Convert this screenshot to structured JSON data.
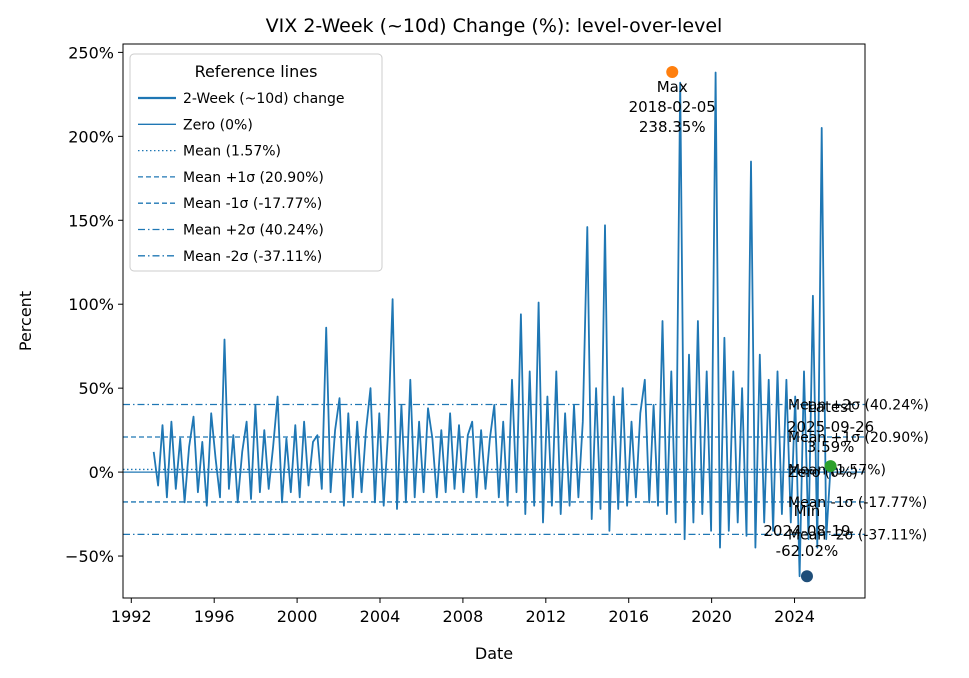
{
  "chart_data": {
    "type": "line",
    "title": "VIX 2-Week (~10d) Change (%): level-over-level",
    "xlabel": "Date",
    "ylabel": "Percent",
    "xlim": [
      1991.6,
      2027.4
    ],
    "ylim": [
      -75,
      255
    ],
    "x_ticks": [
      1992,
      1996,
      2000,
      2004,
      2008,
      2012,
      2016,
      2020,
      2024
    ],
    "x_tick_labels": [
      "1992",
      "1996",
      "2000",
      "2004",
      "2008",
      "2012",
      "2016",
      "2020",
      "2024"
    ],
    "y_ticks": [
      -50,
      0,
      50,
      100,
      150,
      200,
      250
    ],
    "y_tick_labels": [
      "−50%",
      "0%",
      "50%",
      "100%",
      "150%",
      "200%",
      "250%"
    ],
    "grid": false,
    "color": "#1f77b4",
    "series": [
      {
        "name": "2-Week (~10d) change",
        "x_start": 1993.08,
        "x_end": 2025.74,
        "values": [
          12,
          -8,
          28,
          -15,
          30,
          -10,
          20,
          -18,
          15,
          33,
          -12,
          18,
          -20,
          35,
          8,
          -15,
          79,
          -10,
          22,
          -18,
          12,
          30,
          -16,
          40,
          -12,
          25,
          -10,
          15,
          45,
          -18,
          20,
          -12,
          28,
          -15,
          30,
          -8,
          18,
          22,
          -10,
          86,
          -12,
          25,
          44,
          -20,
          35,
          -15,
          30,
          -12,
          25,
          50,
          -18,
          35,
          -20,
          25,
          103,
          -22,
          40,
          -18,
          55,
          -15,
          30,
          -12,
          38,
          20,
          -15,
          25,
          -12,
          35,
          -10,
          28,
          -12,
          22,
          30,
          -15,
          25,
          -10,
          20,
          40,
          -15,
          30,
          -20,
          55,
          -12,
          94,
          -25,
          60,
          -20,
          101,
          -30,
          45,
          -20,
          60,
          -25,
          35,
          -20,
          40,
          -15,
          30,
          146,
          -28,
          50,
          -22,
          147,
          -35,
          45,
          -22,
          50,
          -20,
          30,
          -15,
          35,
          55,
          -18,
          40,
          -20,
          90,
          -25,
          60,
          -30,
          232,
          -40,
          70,
          -30,
          90,
          -25,
          60,
          -35,
          238,
          -45,
          80,
          -35,
          60,
          -30,
          50,
          -38,
          185,
          -45,
          70,
          -30,
          55,
          -35,
          60,
          -25,
          55,
          -30,
          45,
          -62,
          60,
          -40,
          105,
          -45,
          205,
          -40,
          3.59
        ]
      }
    ],
    "reference_lines": [
      {
        "name": "Zero (0%)",
        "value": 0,
        "style": "solid",
        "label": "Zero (0%)"
      },
      {
        "name": "Mean (1.57%)",
        "value": 1.57,
        "style": "dotted",
        "label": "Mean (1.57%)"
      },
      {
        "name": "Mean +1σ (20.90%)",
        "value": 20.9,
        "style": "dashed",
        "label": "Mean +1σ (20.90%)"
      },
      {
        "name": "Mean -1σ (-17.77%)",
        "value": -17.77,
        "style": "dashed",
        "label": "Mean -1σ (-17.77%)"
      },
      {
        "name": "Mean +2σ (40.24%)",
        "value": 40.24,
        "style": "dashdot",
        "label": "Mean +2σ (40.24%)"
      },
      {
        "name": "Mean -2σ (-37.11%)",
        "value": -37.11,
        "style": "dashdot",
        "label": "Mean -2σ (-37.11%)"
      }
    ],
    "legend": {
      "title": "Reference lines",
      "placement": "top-left",
      "entries": [
        "2-Week (~10d) change",
        "Zero (0%)",
        "Mean (1.57%)",
        "Mean +1σ (20.90%)",
        "Mean -1σ (-17.77%)",
        "Mean +2σ (40.24%)",
        "Mean -2σ (-37.11%)"
      ]
    },
    "annotations": [
      {
        "kind": "max",
        "x": 2018.1,
        "y": 238.35,
        "lines": [
          "Max",
          "2018-02-05",
          "238.35%"
        ],
        "color": "#ff7f0e"
      },
      {
        "kind": "min",
        "x": 2024.6,
        "y": -62.02,
        "lines": [
          "Min",
          "2024-08-19",
          "-62.02%"
        ],
        "color": "#1f4e79"
      },
      {
        "kind": "latest",
        "x": 2025.74,
        "y": 3.59,
        "lines": [
          "Latest",
          "2025-09-26",
          "3.59%"
        ],
        "color": "#2ca02c"
      }
    ]
  }
}
